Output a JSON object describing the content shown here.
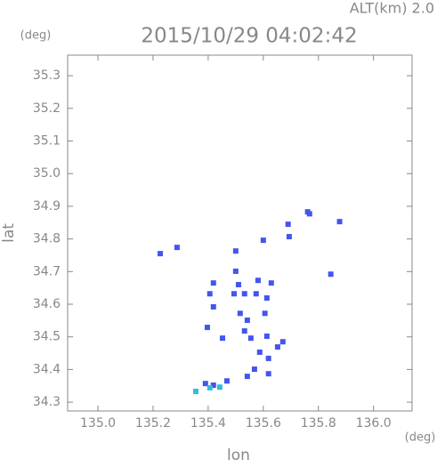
{
  "chart_data": {
    "type": "scatter",
    "title": "2015/10/29 04:02:42",
    "subtitle": "ALT(km) 2.0",
    "x_label": "lon",
    "y_label": "lat",
    "x_unit": "(deg)",
    "y_unit": "(deg)",
    "xlim": [
      134.89,
      136.14
    ],
    "ylim": [
      34.273,
      35.363
    ],
    "xticks": [
      {
        "value": 135.0,
        "label": "135.0"
      },
      135.2,
      135.4,
      135.6,
      135.8,
      {
        "value": 136.0,
        "label": "136.0"
      }
    ],
    "yticks": [
      35.3,
      35.2,
      35.1,
      {
        "value": 35.0,
        "label": "35.0"
      },
      34.9,
      34.8,
      34.7,
      34.6,
      34.5,
      34.4,
      34.3
    ],
    "series": [
      {
        "color": "#4455ee",
        "x": [
          135.761,
          135.768,
          135.877,
          135.69,
          135.6,
          135.226,
          135.287,
          135.5,
          135.694,
          135.845,
          135.5,
          135.419,
          135.51,
          135.581,
          135.629,
          135.406,
          135.494,
          135.532,
          135.574,
          135.613,
          135.419,
          135.516,
          135.542,
          135.606,
          135.397,
          135.532,
          135.555,
          135.613,
          135.652,
          135.671,
          135.452,
          135.587,
          135.619,
          135.568,
          135.619,
          135.542,
          135.468,
          135.419,
          135.39
        ],
        "values": [
          34.883,
          34.877,
          34.853,
          34.845,
          34.796,
          34.755,
          34.774,
          34.763,
          34.807,
          34.692,
          34.701,
          34.665,
          34.66,
          34.673,
          34.665,
          34.632,
          34.632,
          34.632,
          34.632,
          34.619,
          34.592,
          34.572,
          34.551,
          34.572,
          34.529,
          34.518,
          34.496,
          34.502,
          34.469,
          34.485,
          34.496,
          34.453,
          34.434,
          34.401,
          34.387,
          34.379,
          34.365,
          34.352,
          34.357
        ]
      },
      {
        "color": "#33bbdd",
        "x": [
          135.442,
          135.406,
          135.355
        ],
        "values": [
          34.346,
          34.344,
          34.333
        ]
      }
    ]
  }
}
